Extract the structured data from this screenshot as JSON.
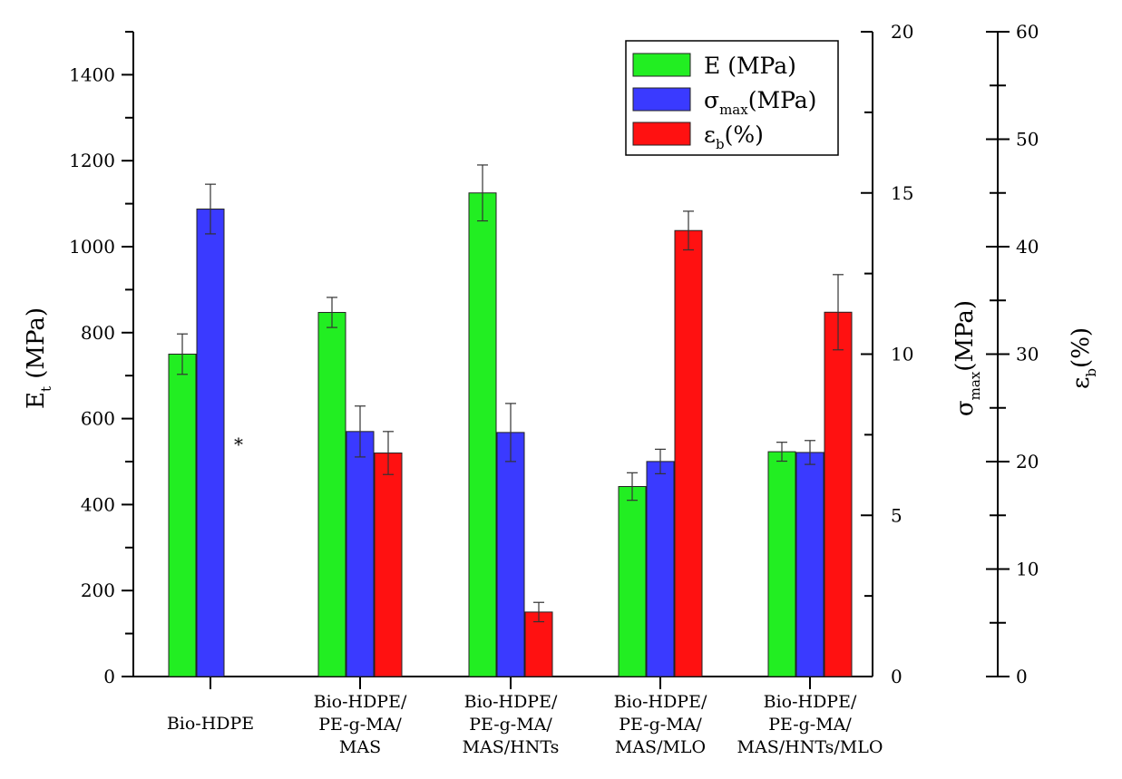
{
  "chart_data": {
    "type": "bar",
    "categories": [
      [
        "Bio-HDPE"
      ],
      [
        "Bio-HDPE/",
        "PE-g-MA/",
        "MAS"
      ],
      [
        "Bio-HDPE/",
        "PE-g-MA/",
        "MAS/HNTs"
      ],
      [
        "Bio-HDPE/",
        "PE-g-MA/",
        "MAS/MLO"
      ],
      [
        "Bio-HDPE/",
        "PE-g-MA/",
        "MAS/HNTs/MLO"
      ]
    ],
    "series": [
      {
        "key": "E",
        "legend_main": "E (MPa)",
        "legend_sub": "",
        "legend_tail": "",
        "axis": "E",
        "color": "#22ee22",
        "values": [
          750,
          847,
          1125,
          442,
          523
        ],
        "errors": [
          47,
          35,
          65,
          32,
          22
        ]
      },
      {
        "key": "sigma",
        "legend_main": "σ",
        "legend_sub": "max",
        "legend_tail": "(MPa)",
        "axis": "sigma",
        "color": "#3a3aff",
        "values": [
          14.5,
          7.6,
          7.57,
          6.67,
          6.95
        ],
        "errors": [
          0.77,
          0.79,
          0.9,
          0.38,
          0.37
        ]
      },
      {
        "key": "eps",
        "legend_main": "ε",
        "legend_sub": "b",
        "legend_tail": "(%)",
        "axis": "eps",
        "color": "#ff1111",
        "values": [
          null,
          20.8,
          6.0,
          41.5,
          33.9
        ],
        "errors": [
          null,
          2.0,
          0.9,
          1.8,
          3.5
        ]
      }
    ],
    "annotations": [
      {
        "text": "*",
        "category_index": 0,
        "series": "eps",
        "note_value": 21.7
      }
    ],
    "axes": {
      "E": {
        "title_main": "E",
        "title_sub": "t",
        "title_tail": " (MPa)",
        "range": [
          0,
          1500
        ],
        "ticks": [
          "0",
          "200",
          "400",
          "600",
          "800",
          "1000",
          "1200",
          "1400"
        ],
        "tick_values": [
          0,
          200,
          400,
          600,
          800,
          1000,
          1200,
          1400
        ],
        "minor_step": 100
      },
      "sigma": {
        "title_main": "σ",
        "title_sub": "max",
        "title_tail": "(MPa)",
        "range": [
          0,
          20
        ],
        "ticks": [
          "0",
          "5",
          "10",
          "15",
          "20"
        ],
        "tick_values": [
          0,
          5,
          10,
          15,
          20
        ],
        "minor_step": 2.5
      },
      "eps": {
        "title_main": "ε",
        "title_sub": "b",
        "title_tail": "(%)",
        "range": [
          0,
          60
        ],
        "ticks": [
          "0",
          "10",
          "20",
          "30",
          "40",
          "50",
          "60"
        ],
        "tick_values": [
          0,
          10,
          20,
          30,
          40,
          50,
          60
        ],
        "minor_step": 5
      }
    },
    "legend_position": "top-right",
    "grid": false
  }
}
